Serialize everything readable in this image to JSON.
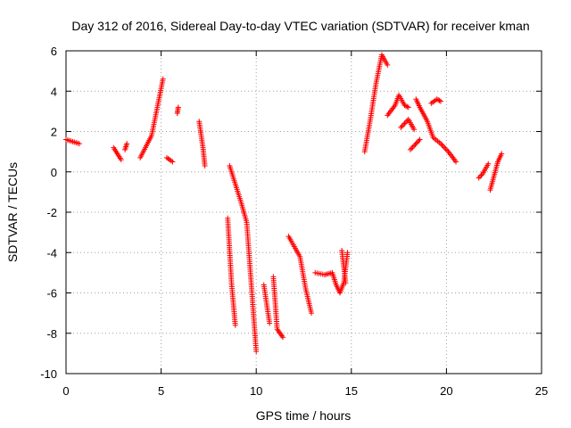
{
  "chart_data": {
    "type": "scatter",
    "title": "Day 312 of 2016, Sidereal Day-to-day VTEC variation (SDTVAR) for receiver kman",
    "xlabel": "GPS time / hours",
    "ylabel": "SDTVAR / TECUs",
    "xlim": [
      0,
      25
    ],
    "ylim": [
      -10,
      6
    ],
    "xticks": [
      0,
      5,
      10,
      15,
      20,
      25
    ],
    "yticks": [
      -10,
      -8,
      -6,
      -4,
      -2,
      0,
      2,
      4,
      6
    ],
    "xtick_labels": [
      "0",
      "5",
      "10",
      "15",
      "20",
      "25"
    ],
    "ytick_labels": [
      "-10",
      "-8",
      "-6",
      "-4",
      "-2",
      "0",
      "2",
      "4",
      "6"
    ],
    "grid": true,
    "marker": "+",
    "color": "#ff0000",
    "segments": [
      {
        "x": [
          0.0,
          0.7
        ],
        "y": [
          1.6,
          1.4
        ]
      },
      {
        "x": [
          2.5,
          2.9
        ],
        "y": [
          1.2,
          0.6
        ]
      },
      {
        "x": [
          3.1,
          3.2
        ],
        "y": [
          1.1,
          1.4
        ]
      },
      {
        "x": [
          3.9,
          4.5,
          5.1
        ],
        "y": [
          0.7,
          1.8,
          4.6
        ]
      },
      {
        "x": [
          5.3,
          5.6
        ],
        "y": [
          0.7,
          0.5
        ]
      },
      {
        "x": [
          5.85,
          5.9
        ],
        "y": [
          2.9,
          3.2
        ]
      },
      {
        "x": [
          7.0,
          7.2,
          7.3
        ],
        "y": [
          2.5,
          1.2,
          0.3
        ]
      },
      {
        "x": [
          8.5,
          8.7,
          8.9
        ],
        "y": [
          -2.3,
          -5.5,
          -7.6
        ]
      },
      {
        "x": [
          8.6,
          9.2,
          9.5,
          10.0
        ],
        "y": [
          0.3,
          -1.5,
          -2.5,
          -8.9
        ]
      },
      {
        "x": [
          10.4,
          10.7
        ],
        "y": [
          -5.6,
          -7.5
        ]
      },
      {
        "x": [
          10.9,
          11.1,
          11.4
        ],
        "y": [
          -5.2,
          -7.8,
          -8.2
        ]
      },
      {
        "x": [
          11.7,
          12.3,
          12.6,
          12.9
        ],
        "y": [
          -3.2,
          -4.2,
          -5.8,
          -7.0
        ]
      },
      {
        "x": [
          13.1,
          13.6,
          14.0,
          14.2,
          14.4,
          14.6,
          14.8
        ],
        "y": [
          -5.0,
          -5.1,
          -5.0,
          -5.6,
          -6.0,
          -5.5,
          -4.0
        ]
      },
      {
        "x": [
          14.5,
          14.7
        ],
        "y": [
          -3.9,
          -5.5
        ]
      },
      {
        "x": [
          15.7,
          16.0,
          16.3,
          16.6,
          16.9
        ],
        "y": [
          1.0,
          2.6,
          4.4,
          5.8,
          5.3
        ]
      },
      {
        "x": [
          16.9,
          17.3,
          17.5,
          17.8,
          18.0
        ],
        "y": [
          2.8,
          3.3,
          3.8,
          3.3,
          3.2
        ]
      },
      {
        "x": [
          17.6,
          18.0,
          18.3
        ],
        "y": [
          2.2,
          2.6,
          2.1
        ]
      },
      {
        "x": [
          18.1,
          18.3,
          18.6
        ],
        "y": [
          1.1,
          1.3,
          1.6
        ]
      },
      {
        "x": [
          18.4,
          18.6,
          19.0,
          19.3,
          19.7,
          20.1,
          20.5
        ],
        "y": [
          3.6,
          3.2,
          2.5,
          1.7,
          1.4,
          1.0,
          0.5
        ]
      },
      {
        "x": [
          19.2,
          19.5,
          19.7
        ],
        "y": [
          3.4,
          3.6,
          3.5
        ]
      },
      {
        "x": [
          21.7,
          21.9,
          22.2
        ],
        "y": [
          -0.3,
          -0.1,
          0.4
        ]
      },
      {
        "x": [
          22.3,
          22.5,
          22.7,
          22.9
        ],
        "y": [
          -0.9,
          -0.2,
          0.5,
          0.9
        ]
      }
    ]
  }
}
